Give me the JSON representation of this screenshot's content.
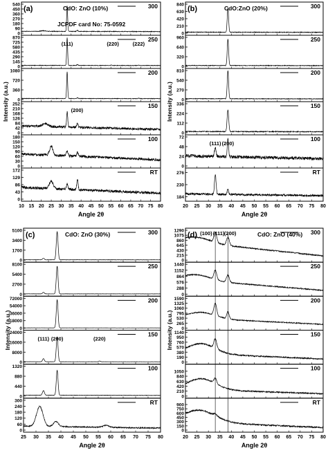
{
  "figure": {
    "background": "#ffffff",
    "ink": "#000000"
  },
  "chart_data": [
    {
      "type": "line",
      "panel_label": "(a)",
      "title": "CdO: ZnO (10%)",
      "annotation": "JCPDF card No: 75-0592",
      "xlabel": "Angle 2θ",
      "ylabel": "Intensity (a.u.)",
      "xlim": [
        10,
        80
      ],
      "xticks": [
        10,
        15,
        20,
        25,
        30,
        35,
        40,
        45,
        50,
        55,
        60,
        65,
        70,
        75,
        80
      ],
      "grid": false,
      "legend_position": "top-right of each stacked subplot",
      "peak_labels": [
        {
          "text": "(111)",
          "x": 33,
          "subplot": "250"
        },
        {
          "text": "(220)",
          "x": 56,
          "subplot": "250"
        },
        {
          "text": "(222)",
          "x": 69,
          "subplot": "250"
        },
        {
          "text": "(200)",
          "x": 38,
          "subplot": "150"
        }
      ],
      "subplots": [
        {
          "name": "300",
          "ylim": [
            0,
            540
          ],
          "yticks": [
            0,
            90,
            180,
            270,
            360,
            450,
            540
          ],
          "baseline": [
            35,
            30
          ],
          "peaks": [
            {
              "x": 33,
              "h": 480,
              "w": 0.25
            },
            {
              "x": 38.2,
              "h": 20,
              "w": 0.3
            },
            {
              "x": 21,
              "h": 12,
              "w": 1.2
            }
          ],
          "noise": 6
        },
        {
          "name": "250",
          "ylim": [
            0,
            870
          ],
          "yticks": [
            0,
            145,
            290,
            435,
            580,
            725,
            870
          ],
          "baseline": [
            30,
            26
          ],
          "peaks": [
            {
              "x": 33,
              "h": 830,
              "w": 0.25
            },
            {
              "x": 38.2,
              "h": 25,
              "w": 0.3
            },
            {
              "x": 55.3,
              "h": 15,
              "w": 0.3
            },
            {
              "x": 69,
              "h": 12,
              "w": 0.3
            }
          ],
          "noise": 8
        },
        {
          "name": "200",
          "ylim": [
            0,
            1080
          ],
          "yticks": [
            0,
            360,
            720,
            1080
          ],
          "baseline": [
            40,
            35
          ],
          "peaks": [
            {
              "x": 33,
              "h": 1000,
              "w": 0.25
            },
            {
              "x": 38.2,
              "h": 30,
              "w": 0.3
            },
            {
              "x": 69,
              "h": 18,
              "w": 0.3
            }
          ],
          "noise": 10
        },
        {
          "name": "150",
          "ylim": [
            0,
            252
          ],
          "yticks": [
            0,
            42,
            84,
            126,
            168,
            210,
            252
          ],
          "baseline": [
            60,
            28
          ],
          "peaks": [
            {
              "x": 22,
              "h": 25,
              "w": 1.5
            },
            {
              "x": 33,
              "h": 130,
              "w": 0.3
            },
            {
              "x": 38.2,
              "h": 40,
              "w": 0.35
            }
          ],
          "noise": 10
        },
        {
          "name": "100",
          "ylim": [
            0,
            180
          ],
          "yticks": [
            0,
            30,
            60,
            90,
            120,
            150,
            180
          ],
          "baseline": [
            75,
            38
          ],
          "peaks": [
            {
              "x": 25,
              "h": 55,
              "w": 0.8
            },
            {
              "x": 33,
              "h": 30,
              "w": 0.4
            },
            {
              "x": 38.2,
              "h": 25,
              "w": 0.4
            }
          ],
          "noise": 8
        },
        {
          "name": "RT",
          "ylim": [
            0,
            172
          ],
          "yticks": [
            0,
            43,
            86,
            129,
            172
          ],
          "baseline": [
            70,
            35
          ],
          "peaks": [
            {
              "x": 25,
              "h": 45,
              "w": 1.0
            },
            {
              "x": 33,
              "h": 30,
              "w": 0.4
            },
            {
              "x": 38.2,
              "h": 60,
              "w": 0.35
            }
          ],
          "noise": 8
        }
      ]
    },
    {
      "type": "line",
      "panel_label": "(b)",
      "title": "CdO:ZnO (20%)",
      "annotation": "",
      "xlabel": "Angle 2θ",
      "ylabel": "Intensity (a.u.)",
      "xlim": [
        20,
        80
      ],
      "xticks": [
        20,
        25,
        30,
        35,
        40,
        45,
        50,
        55,
        60,
        65,
        70,
        75,
        80
      ],
      "grid": false,
      "legend_position": "top-right of each stacked subplot",
      "peak_labels": [
        {
          "text": "(111)",
          "x": 33,
          "subplot": "100"
        },
        {
          "text": "(200)",
          "x": 38.5,
          "subplot": "100"
        }
      ],
      "subplots": [
        {
          "name": "300",
          "ylim": [
            0,
            840
          ],
          "yticks": [
            0,
            210,
            420,
            630,
            840
          ],
          "baseline": [
            30,
            25
          ],
          "peaks": [
            {
              "x": 38.5,
              "h": 700,
              "w": 0.3
            }
          ],
          "noise": 10
        },
        {
          "name": "250",
          "ylim": [
            0,
            960
          ],
          "yticks": [
            0,
            320,
            640,
            960
          ],
          "baseline": [
            30,
            25
          ],
          "peaks": [
            {
              "x": 38.5,
              "h": 880,
              "w": 0.3
            }
          ],
          "noise": 10
        },
        {
          "name": "200",
          "ylim": [
            0,
            810
          ],
          "yticks": [
            0,
            270,
            540,
            810
          ],
          "baseline": [
            25,
            20
          ],
          "peaks": [
            {
              "x": 38.5,
              "h": 780,
              "w": 0.3
            }
          ],
          "noise": 8
        },
        {
          "name": "150",
          "ylim": [
            0,
            336
          ],
          "yticks": [
            0,
            112,
            224,
            336
          ],
          "baseline": [
            15,
            12
          ],
          "peaks": [
            {
              "x": 38.5,
              "h": 250,
              "w": 0.35
            }
          ],
          "noise": 5
        },
        {
          "name": "100",
          "ylim": [
            0,
            72
          ],
          "yticks": [
            0,
            24,
            48,
            72
          ],
          "baseline": [
            25,
            18
          ],
          "peaks": [
            {
              "x": 33,
              "h": 22,
              "w": 0.35
            },
            {
              "x": 38.5,
              "h": 42,
              "w": 0.3
            }
          ],
          "noise": 4
        },
        {
          "name": "RT",
          "ylim": [
            175,
            285
          ],
          "yticks": [
            184,
            230,
            276
          ],
          "baseline": [
            195,
            188
          ],
          "peaks": [
            {
              "x": 33,
              "h": 75,
              "w": 0.35
            },
            {
              "x": 38.5,
              "h": 20,
              "w": 0.3
            }
          ],
          "noise": 4
        }
      ]
    },
    {
      "type": "line",
      "panel_label": "(c)",
      "title": "CdO: ZnO (30%)",
      "annotation": "",
      "xlabel": "Angle 2θ",
      "ylabel": "Intensity (a.u.)",
      "xlim": [
        25,
        80
      ],
      "xticks": [
        25,
        30,
        35,
        40,
        45,
        50,
        55,
        60,
        65,
        70,
        75,
        80
      ],
      "grid": false,
      "legend_position": "top-right of each stacked subplot",
      "peak_labels": [
        {
          "text": "(111)",
          "x": 33,
          "subplot": "150"
        },
        {
          "text": "(200)",
          "x": 38.5,
          "subplot": "150"
        },
        {
          "text": "(220)",
          "x": 55.5,
          "subplot": "150"
        }
      ],
      "subplots": [
        {
          "name": "300",
          "ylim": [
            0,
            5100
          ],
          "yticks": [
            0,
            1700,
            3400,
            5100
          ],
          "baseline": [
            60,
            50
          ],
          "peaks": [
            {
              "x": 38.5,
              "h": 4800,
              "w": 0.35
            },
            {
              "x": 33,
              "h": 250,
              "w": 0.35
            }
          ],
          "noise": 25
        },
        {
          "name": "250",
          "ylim": [
            0,
            8100
          ],
          "yticks": [
            0,
            2700,
            5400,
            8100
          ],
          "baseline": [
            80,
            70
          ],
          "peaks": [
            {
              "x": 38.5,
              "h": 7500,
              "w": 0.35
            },
            {
              "x": 33,
              "h": 400,
              "w": 0.35
            }
          ],
          "noise": 30
        },
        {
          "name": "200",
          "ylim": [
            0,
            72000
          ],
          "yticks": [
            0,
            18000,
            36000,
            54000,
            72000
          ],
          "baseline": [
            600,
            500
          ],
          "peaks": [
            {
              "x": 38.5,
              "h": 68000,
              "w": 0.35
            }
          ],
          "noise": 200
        },
        {
          "name": "150",
          "ylim": [
            0,
            24000
          ],
          "yticks": [
            0,
            8000,
            16000,
            24000
          ],
          "baseline": [
            300,
            250
          ],
          "peaks": [
            {
              "x": 33,
              "h": 2500,
              "w": 0.35
            },
            {
              "x": 38.5,
              "h": 20000,
              "w": 0.35
            },
            {
              "x": 55.5,
              "h": 600,
              "w": 0.35
            }
          ],
          "noise": 80
        },
        {
          "name": "100",
          "ylim": [
            0,
            1320
          ],
          "yticks": [
            0,
            440,
            880,
            1320
          ],
          "baseline": [
            40,
            30
          ],
          "peaks": [
            {
              "x": 33,
              "h": 200,
              "w": 0.4
            },
            {
              "x": 38.5,
              "h": 1100,
              "w": 0.35
            }
          ],
          "noise": 8
        },
        {
          "name": "RT",
          "ylim": [
            0,
            300
          ],
          "yticks": [
            0,
            60,
            120,
            180,
            240,
            300
          ],
          "baseline": [
            40,
            20
          ],
          "peaks": [
            {
              "x": 31.5,
              "h": 200,
              "w": 1.3
            },
            {
              "x": 38,
              "h": 50,
              "w": 1.0
            },
            {
              "x": 58,
              "h": 20,
              "w": 1.2
            }
          ],
          "noise": 6
        }
      ]
    },
    {
      "type": "line",
      "panel_label": "(d)",
      "title": "CdO: ZnO (40%)",
      "annotation": "",
      "xlabel": "Angle 2θ",
      "ylabel": "Intensity (a.u.)",
      "xlim": [
        20,
        80
      ],
      "xticks": [
        20,
        25,
        30,
        35,
        40,
        45,
        50,
        55,
        60,
        65,
        70,
        75,
        80
      ],
      "grid": false,
      "legend_position": "top-right of each stacked subplot",
      "reference_lines_x": [
        33,
        38.5
      ],
      "peak_labels": [
        {
          "text": "(100)",
          "x": 29,
          "subplot": "300"
        },
        {
          "text": "(111)",
          "x": 34.5,
          "subplot": "300"
        },
        {
          "text": "(200)",
          "x": 39.5,
          "subplot": "300"
        }
      ],
      "subplots": [
        {
          "name": "300",
          "ylim": [
            0,
            1290
          ],
          "yticks": [
            0,
            215,
            430,
            645,
            860,
            1075,
            1290
          ],
          "baseline": [
            820,
            180
          ],
          "hump": {
            "x": 25,
            "h": 220,
            "w": 6
          },
          "peaks": [
            {
              "x": 33,
              "h": 430,
              "w": 0.6
            },
            {
              "x": 38.5,
              "h": 350,
              "w": 0.6
            }
          ],
          "noise": 25
        },
        {
          "name": "250",
          "ylim": [
            0,
            1440
          ],
          "yticks": [
            0,
            288,
            576,
            864,
            1152,
            1440
          ],
          "baseline": [
            720,
            180
          ],
          "hump": {
            "x": 25,
            "h": 260,
            "w": 6
          },
          "peaks": [
            {
              "x": 33,
              "h": 450,
              "w": 0.6
            },
            {
              "x": 38.5,
              "h": 350,
              "w": 0.6
            }
          ],
          "noise": 25
        },
        {
          "name": "200",
          "ylim": [
            0,
            1590
          ],
          "yticks": [
            0,
            265,
            530,
            795,
            1060,
            1325,
            1590
          ],
          "baseline": [
            560,
            200
          ],
          "hump": {
            "x": 27,
            "h": 320,
            "w": 6
          },
          "peaks": [
            {
              "x": 33,
              "h": 650,
              "w": 0.6
            },
            {
              "x": 38.5,
              "h": 380,
              "w": 0.5
            }
          ],
          "noise": 25
        },
        {
          "name": "150",
          "ylim": [
            0,
            1140
          ],
          "yticks": [
            0,
            190,
            380,
            570,
            760,
            950,
            1140
          ],
          "baseline": [
            350,
            120
          ],
          "hump": {
            "x": 27,
            "h": 380,
            "w": 6
          },
          "peaks": [
            {
              "x": 33,
              "h": 360,
              "w": 0.6
            }
          ],
          "noise": 25
        },
        {
          "name": "100",
          "ylim": [
            0,
            1260
          ],
          "yticks": [
            0,
            210,
            420,
            630,
            840,
            1050
          ],
          "baseline": [
            300,
            100
          ],
          "hump": {
            "x": 27,
            "h": 460,
            "w": 6
          },
          "peaks": [
            {
              "x": 33,
              "h": 220,
              "w": 0.6
            }
          ],
          "noise": 25
        },
        {
          "name": "RT",
          "ylim": [
            0,
            1050
          ],
          "yticks": [
            0,
            150,
            300,
            450,
            600,
            750,
            900
          ],
          "baseline": [
            300,
            90
          ],
          "hump": {
            "x": 26,
            "h": 420,
            "w": 7
          },
          "peaks": [
            {
              "x": 33,
              "h": 60,
              "w": 0.8
            }
          ],
          "noise": 25
        }
      ]
    }
  ]
}
